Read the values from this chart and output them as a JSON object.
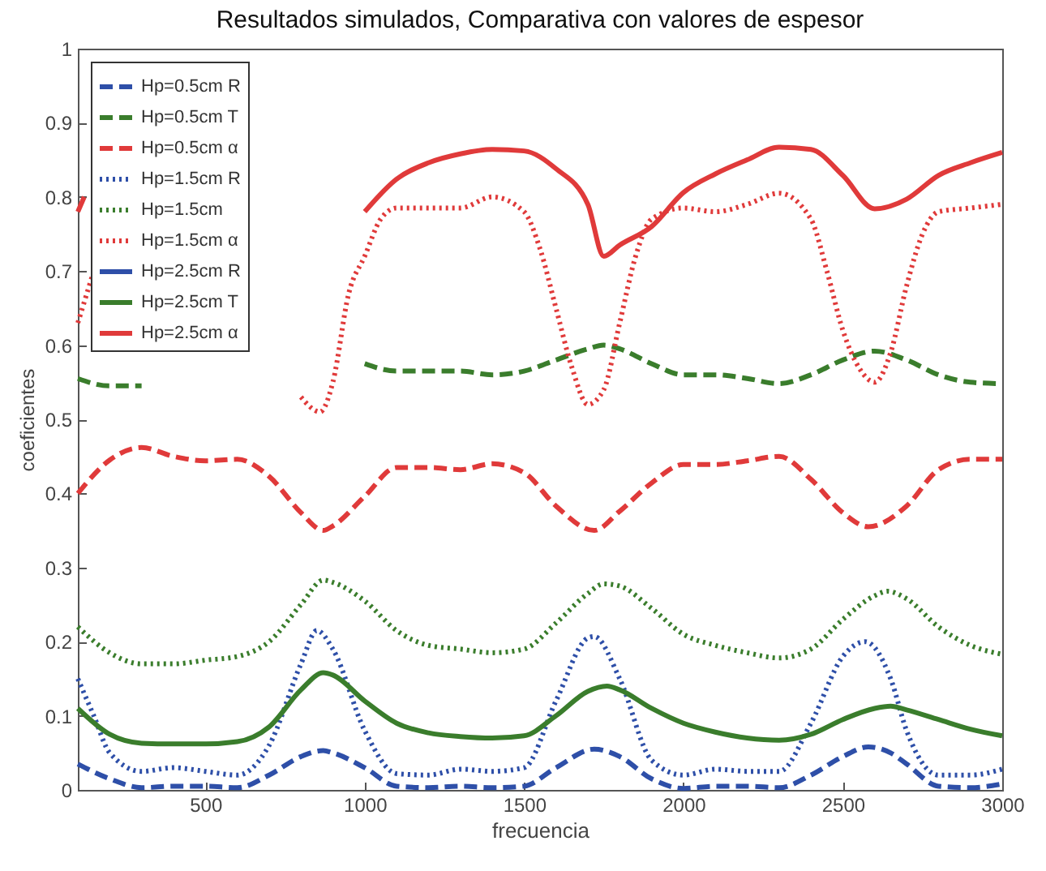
{
  "chart_data": {
    "type": "line",
    "title": "Resultados simulados, Comparativa con valores de espesor",
    "xlabel": "frecuencia",
    "ylabel": "coeficientes",
    "xlim": [
      100,
      3000
    ],
    "xticks": [
      500,
      1000,
      1500,
      2000,
      2500,
      3000
    ],
    "ylim": [
      0,
      1
    ],
    "yticks": [
      0,
      0.1,
      0.2,
      0.3,
      0.4,
      0.5,
      0.6,
      0.7,
      0.8,
      0.9,
      1
    ],
    "grid": false,
    "legend": "top left",
    "marker": "none",
    "series": [
      {
        "name": "Hp=0.5cm R",
        "color": "#2e4fa8",
        "line_style": "dashed",
        "x": [
          100,
          200,
          300,
          400,
          500,
          600,
          700,
          800,
          870,
          900,
          1000,
          1100,
          1200,
          1300,
          1400,
          1500,
          1600,
          1720,
          1800,
          1900,
          2000,
          2100,
          2200,
          2300,
          2400,
          2500,
          2580,
          2650,
          2700,
          2800,
          2900,
          3000
        ],
        "values": [
          0.035,
          0.015,
          0.003,
          0.005,
          0.005,
          0.003,
          0.02,
          0.045,
          0.053,
          0.05,
          0.03,
          0.005,
          0.003,
          0.005,
          0.003,
          0.005,
          0.03,
          0.055,
          0.045,
          0.015,
          0.002,
          0.005,
          0.005,
          0.003,
          0.02,
          0.045,
          0.058,
          0.05,
          0.035,
          0.005,
          0.003,
          0.008
        ]
      },
      {
        "name": "Hp=0.5cm T",
        "color": "#3a7d2c",
        "line_style": "dashed",
        "x": [
          100,
          200,
          300,
          400,
          1000,
          1100,
          1200,
          1300,
          1400,
          1500,
          1600,
          1700,
          1750,
          1800,
          1900,
          2000,
          2100,
          2200,
          2300,
          2400,
          2500,
          2600,
          2700,
          2800,
          2900,
          3000
        ],
        "values": [
          0.555,
          0.545,
          0.545,
          null,
          0.575,
          0.565,
          0.565,
          0.565,
          0.56,
          0.565,
          0.58,
          0.595,
          0.6,
          0.595,
          0.575,
          0.56,
          0.56,
          0.555,
          0.548,
          0.56,
          0.58,
          0.592,
          0.58,
          0.56,
          0.55,
          0.548
        ]
      },
      {
        "name": "Hp=0.5cm α",
        "color": "#e03a3a",
        "line_style": "dashed",
        "x": [
          100,
          200,
          300,
          400,
          500,
          600,
          700,
          800,
          870,
          900,
          1000,
          1100,
          1200,
          1300,
          1400,
          1500,
          1600,
          1720,
          1800,
          1900,
          2000,
          2100,
          2200,
          2300,
          2400,
          2500,
          2580,
          2700,
          2800,
          2900,
          3000
        ],
        "values": [
          0.4,
          0.445,
          0.462,
          0.45,
          0.444,
          0.446,
          0.423,
          0.374,
          0.35,
          0.356,
          0.396,
          0.435,
          0.435,
          0.432,
          0.44,
          0.428,
          0.383,
          0.35,
          0.376,
          0.414,
          0.439,
          0.439,
          0.444,
          0.45,
          0.419,
          0.374,
          0.355,
          0.383,
          0.432,
          0.446,
          0.446
        ]
      },
      {
        "name": "Hp=1.5cm R",
        "color": "#2e4fa8",
        "line_style": "dotted",
        "x": [
          100,
          150,
          200,
          300,
          400,
          500,
          600,
          700,
          800,
          850,
          900,
          1000,
          1100,
          1200,
          1300,
          1400,
          1500,
          1600,
          1700,
          1720,
          1800,
          1900,
          2000,
          2100,
          2200,
          2300,
          2400,
          2500,
          2570,
          2650,
          2700,
          2800,
          2900,
          3000
        ],
        "values": [
          0.15,
          0.1,
          0.05,
          0.025,
          0.03,
          0.025,
          0.02,
          0.06,
          0.17,
          0.215,
          0.19,
          0.08,
          0.022,
          0.02,
          0.028,
          0.025,
          0.03,
          0.12,
          0.205,
          0.207,
          0.15,
          0.04,
          0.02,
          0.028,
          0.025,
          0.025,
          0.09,
          0.18,
          0.2,
          0.15,
          0.08,
          0.02,
          0.02,
          0.028
        ]
      },
      {
        "name": "Hp=1.5cm",
        "color": "#3a7d2c",
        "line_style": "dotted",
        "x": [
          100,
          200,
          300,
          400,
          500,
          600,
          700,
          800,
          870,
          900,
          1000,
          1100,
          1200,
          1300,
          1400,
          1500,
          1600,
          1700,
          1750,
          1800,
          1900,
          2000,
          2100,
          2200,
          2300,
          2400,
          2500,
          2600,
          2640,
          2700,
          2800,
          2900,
          3000
        ],
        "values": [
          0.22,
          0.185,
          0.17,
          0.17,
          0.175,
          0.18,
          0.2,
          0.25,
          0.283,
          0.28,
          0.255,
          0.215,
          0.195,
          0.19,
          0.185,
          0.19,
          0.225,
          0.265,
          0.278,
          0.275,
          0.245,
          0.21,
          0.195,
          0.185,
          0.178,
          0.19,
          0.23,
          0.262,
          0.268,
          0.258,
          0.22,
          0.195,
          0.183
        ]
      },
      {
        "name": "Hp=1.5cm α",
        "color": "#e03a3a",
        "line_style": "dotted",
        "x": [
          100,
          150,
          200,
          800,
          860,
          900,
          950,
          1000,
          1050,
          1100,
          1200,
          1300,
          1400,
          1500,
          1550,
          1600,
          1650,
          1700,
          1750,
          1800,
          1850,
          1900,
          2000,
          2100,
          2200,
          2300,
          2400,
          2450,
          2500,
          2550,
          2600,
          2650,
          2700,
          2750,
          2800,
          2900,
          3000
        ],
        "values": [
          0.63,
          0.7,
          null,
          0.53,
          0.51,
          0.55,
          0.67,
          0.72,
          0.77,
          0.785,
          0.785,
          0.785,
          0.8,
          0.78,
          0.73,
          0.65,
          0.57,
          0.52,
          0.54,
          0.63,
          0.72,
          0.77,
          0.785,
          0.78,
          0.79,
          0.805,
          0.77,
          0.7,
          0.62,
          0.57,
          0.55,
          0.59,
          0.68,
          0.75,
          0.78,
          0.785,
          0.79
        ]
      },
      {
        "name": "Hp=2.5cm R",
        "color": "#2e4fa8",
        "line_style": "solid"
      },
      {
        "name": "Hp=2.5cm T",
        "color": "#3a7d2c",
        "line_style": "solid",
        "x": [
          100,
          200,
          300,
          400,
          500,
          600,
          700,
          800,
          870,
          900,
          1000,
          1100,
          1200,
          1300,
          1400,
          1500,
          1600,
          1700,
          1760,
          1800,
          1900,
          2000,
          2100,
          2200,
          2300,
          2400,
          2500,
          2600,
          2650,
          2700,
          2800,
          2900,
          3000
        ],
        "values": [
          0.11,
          0.075,
          0.063,
          0.062,
          0.062,
          0.065,
          0.085,
          0.135,
          0.158,
          0.155,
          0.12,
          0.09,
          0.077,
          0.072,
          0.07,
          0.073,
          0.1,
          0.133,
          0.14,
          0.135,
          0.11,
          0.09,
          0.078,
          0.07,
          0.067,
          0.075,
          0.095,
          0.11,
          0.113,
          0.108,
          0.095,
          0.082,
          0.073
        ]
      },
      {
        "name": "Hp=2.5cm α",
        "color": "#e03a3a",
        "line_style": "solid",
        "x": [
          100,
          120,
          300,
          1000,
          1100,
          1200,
          1300,
          1400,
          1500,
          1600,
          1700,
          1750,
          1800,
          1900,
          2000,
          2100,
          2200,
          2300,
          2400,
          2500,
          2600,
          2700,
          2800,
          2900,
          3000
        ],
        "values": [
          0.78,
          0.8,
          null,
          0.78,
          0.824,
          0.846,
          0.858,
          0.864,
          0.862,
          0.838,
          0.79,
          0.72,
          0.735,
          0.76,
          0.806,
          0.831,
          0.85,
          0.867,
          0.864,
          0.829,
          0.784,
          0.797,
          0.829,
          0.846,
          0.86
        ]
      }
    ]
  }
}
